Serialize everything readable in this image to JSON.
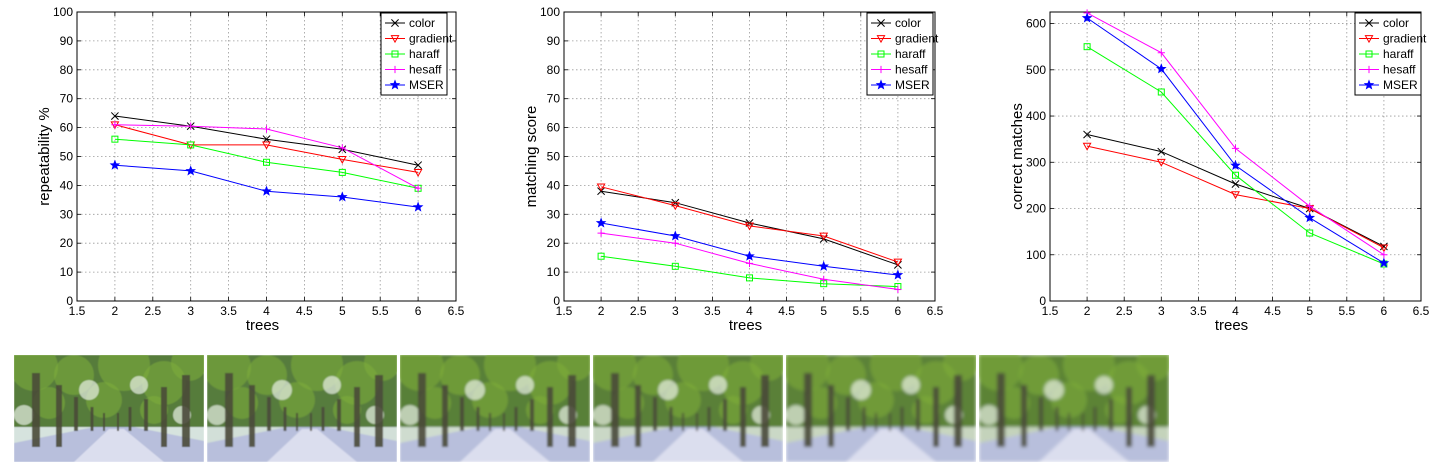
{
  "chart_data": [
    {
      "type": "line",
      "xlabel": "trees",
      "ylabel": "repeatability %",
      "xlim": [
        1.5,
        6.5
      ],
      "ylim": [
        0,
        100
      ],
      "xticks": [
        "1.5",
        "2",
        "2.5",
        "3",
        "3.5",
        "4",
        "4.5",
        "5",
        "5.5",
        "6",
        "6.5"
      ],
      "yticks": [
        "0",
        "10",
        "20",
        "30",
        "40",
        "50",
        "60",
        "70",
        "80",
        "90",
        "100"
      ],
      "grid": true,
      "legend_position": "top-right",
      "x": [
        2,
        3,
        4,
        5,
        6
      ],
      "series": [
        {
          "name": "color",
          "color": "#000000",
          "marker": "x",
          "values": [
            64,
            60.5,
            56,
            52.5,
            47
          ]
        },
        {
          "name": "gradient",
          "color": "#ff0000",
          "marker": "triangle-down",
          "values": [
            61,
            54,
            54,
            49,
            44.5
          ]
        },
        {
          "name": "haraff",
          "color": "#00ff00",
          "marker": "square",
          "values": [
            56,
            54,
            48,
            44.5,
            39
          ]
        },
        {
          "name": "hesaff",
          "color": "#ff00ff",
          "marker": "plus",
          "values": [
            61,
            60.5,
            59.5,
            53,
            39
          ]
        },
        {
          "name": "MSER",
          "color": "#0000ff",
          "marker": "star",
          "values": [
            47,
            45,
            38,
            36,
            32.5
          ]
        }
      ]
    },
    {
      "type": "line",
      "xlabel": "trees",
      "ylabel": "matching score",
      "xlim": [
        1.5,
        6.5
      ],
      "ylim": [
        0,
        100
      ],
      "xticks": [
        "1.5",
        "2",
        "2.5",
        "3",
        "3.5",
        "4",
        "4.5",
        "5",
        "5.5",
        "6",
        "6.5"
      ],
      "yticks": [
        "0",
        "10",
        "20",
        "30",
        "40",
        "50",
        "60",
        "70",
        "80",
        "90",
        "100"
      ],
      "grid": true,
      "legend_position": "top-right",
      "x": [
        2,
        3,
        4,
        5,
        6
      ],
      "series": [
        {
          "name": "color",
          "color": "#000000",
          "marker": "x",
          "values": [
            38,
            34,
            27,
            21.5,
            12.5
          ]
        },
        {
          "name": "gradient",
          "color": "#ff0000",
          "marker": "triangle-down",
          "values": [
            39.5,
            33,
            26,
            22.5,
            13.5
          ]
        },
        {
          "name": "haraff",
          "color": "#00ff00",
          "marker": "square",
          "values": [
            15.5,
            12,
            8,
            6,
            5
          ]
        },
        {
          "name": "hesaff",
          "color": "#ff00ff",
          "marker": "plus",
          "values": [
            23.5,
            20,
            13,
            7.5,
            4
          ]
        },
        {
          "name": "MSER",
          "color": "#0000ff",
          "marker": "star",
          "values": [
            27,
            22.5,
            15.5,
            12,
            9
          ]
        }
      ]
    },
    {
      "type": "line",
      "xlabel": "trees",
      "ylabel": "correct matches",
      "xlim": [
        1.5,
        6.5
      ],
      "ylim": [
        0,
        625
      ],
      "xticks": [
        "1.5",
        "2",
        "2.5",
        "3",
        "3.5",
        "4",
        "4.5",
        "5",
        "5.5",
        "6",
        "6.5"
      ],
      "yticks": [
        "0",
        "100",
        "200",
        "300",
        "400",
        "500",
        "600"
      ],
      "grid": true,
      "legend_position": "top-right",
      "x": [
        2,
        3,
        4,
        5,
        6
      ],
      "series": [
        {
          "name": "color",
          "color": "#000000",
          "marker": "x",
          "values": [
            360,
            323,
            253,
            200,
            118
          ]
        },
        {
          "name": "gradient",
          "color": "#ff0000",
          "marker": "triangle-down",
          "values": [
            335,
            300,
            230,
            200,
            115
          ]
        },
        {
          "name": "haraff",
          "color": "#00ff00",
          "marker": "square",
          "values": [
            550,
            452,
            272,
            147,
            80
          ]
        },
        {
          "name": "hesaff",
          "color": "#ff00ff",
          "marker": "plus",
          "values": [
            623,
            537,
            330,
            205,
            100
          ]
        },
        {
          "name": "MSER",
          "color": "#0000ff",
          "marker": "star",
          "values": [
            612,
            502,
            293,
            180,
            82
          ]
        }
      ]
    }
  ],
  "photos": [
    {
      "name": "trees-image-1",
      "sky": "#d6e3de",
      "foliage": "#3f6a1e"
    },
    {
      "name": "trees-image-2",
      "sky": "#d2dfd8",
      "foliage": "#416b22"
    },
    {
      "name": "trees-image-3",
      "sky": "#cfdccf",
      "foliage": "#44701f"
    },
    {
      "name": "trees-image-4",
      "sky": "#cad8c6",
      "foliage": "#46711f"
    },
    {
      "name": "trees-image-5",
      "sky": "#c8d6c0",
      "foliage": "#48731f"
    },
    {
      "name": "trees-image-6",
      "sky": "#c4d3bb",
      "foliage": "#4a741f"
    }
  ]
}
